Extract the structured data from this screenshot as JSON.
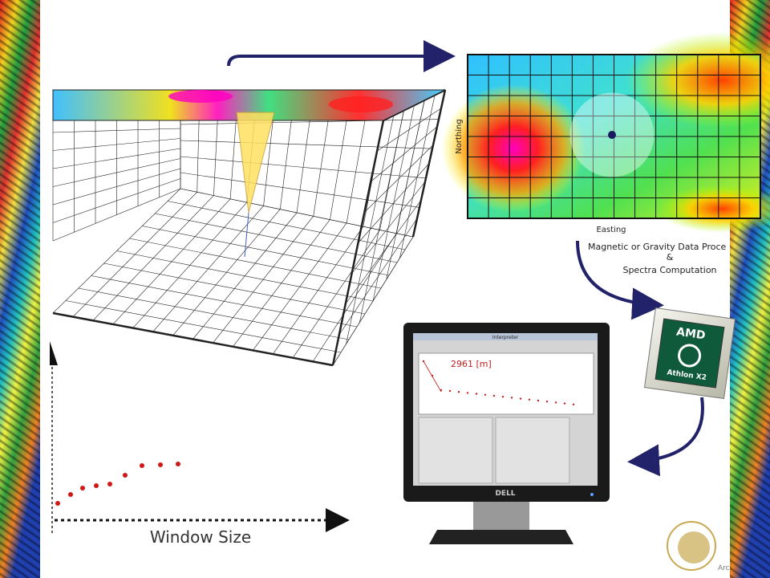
{
  "map_panel": {
    "y_label": "Northing",
    "x_label": "Easting"
  },
  "process_label": {
    "line1": "Magnetic or Gravity Data Proce",
    "line2": "&",
    "line3": "Spectra Computation"
  },
  "cpu": {
    "brand": "AMD",
    "model": "Athlon X2"
  },
  "monitor": {
    "window_title": "Interpreter",
    "depth_label": "2961 [m]",
    "brand": "DELL"
  },
  "plot_axis": {
    "x_label": "Window Size"
  },
  "logo": {
    "text": "Arc"
  }
}
